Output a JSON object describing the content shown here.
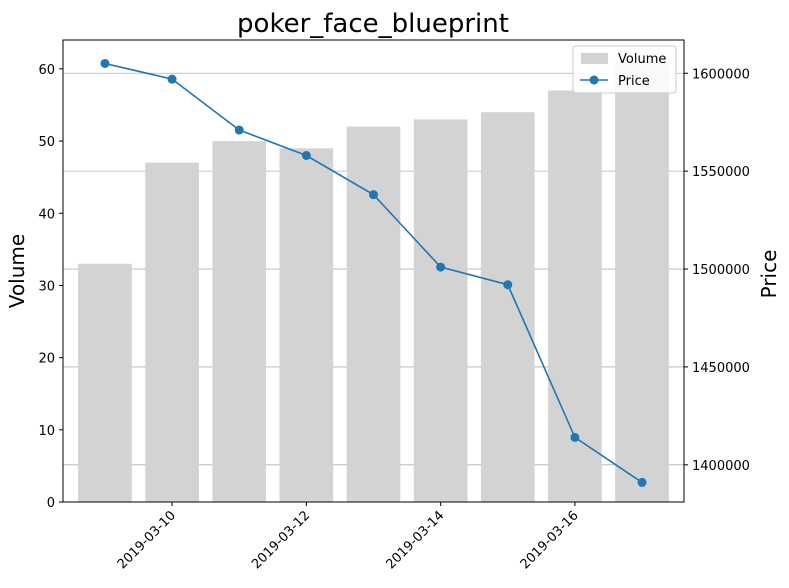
{
  "chart_data": {
    "type": "bar+line",
    "title": "poker_face_blueprint",
    "dates": [
      "2019-03-09",
      "2019-03-10",
      "2019-03-11",
      "2019-03-12",
      "2019-03-13",
      "2019-03-14",
      "2019-03-15",
      "2019-03-16",
      "2019-03-17"
    ],
    "x_ticks": [
      "2019-03-10",
      "2019-03-12",
      "2019-03-14",
      "2019-03-16"
    ],
    "xlim": [
      "2019-03-08T09:00",
      "2019-03-17T15:00"
    ],
    "left_axis": {
      "label": "Volume",
      "ylim": [
        0,
        64
      ],
      "ticks": [
        0,
        10,
        20,
        30,
        40,
        50,
        60
      ]
    },
    "right_axis": {
      "label": "Price",
      "ylim": [
        1381000,
        1617000
      ],
      "ticks": [
        1400000,
        1450000,
        1500000,
        1550000,
        1600000
      ]
    },
    "series": [
      {
        "name": "Volume",
        "kind": "bar",
        "axis": "left",
        "color": "#d3d3d3",
        "values": [
          33,
          47,
          50,
          49,
          52,
          53,
          54,
          57,
          61
        ]
      },
      {
        "name": "Price",
        "kind": "line",
        "axis": "right",
        "color": "#1f77b4",
        "values": [
          1605000,
          1597000,
          1571000,
          1558000,
          1538000,
          1501000,
          1492000,
          1414000,
          1391000
        ]
      }
    ],
    "grid": "horizontal (right axis)",
    "legend": "top-right"
  }
}
